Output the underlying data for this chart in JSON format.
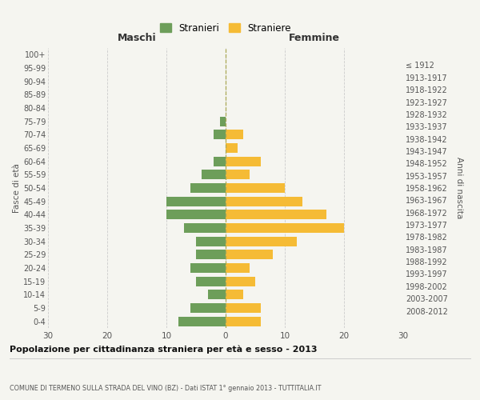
{
  "age_groups": [
    "0-4",
    "5-9",
    "10-14",
    "15-19",
    "20-24",
    "25-29",
    "30-34",
    "35-39",
    "40-44",
    "45-49",
    "50-54",
    "55-59",
    "60-64",
    "65-69",
    "70-74",
    "75-79",
    "80-84",
    "85-89",
    "90-94",
    "95-99",
    "100+"
  ],
  "birth_years": [
    "2008-2012",
    "2003-2007",
    "1998-2002",
    "1993-1997",
    "1988-1992",
    "1983-1987",
    "1978-1982",
    "1973-1977",
    "1968-1972",
    "1963-1967",
    "1958-1962",
    "1953-1957",
    "1948-1952",
    "1943-1947",
    "1938-1942",
    "1933-1937",
    "1928-1932",
    "1923-1927",
    "1918-1922",
    "1913-1917",
    "≤ 1912"
  ],
  "males": [
    8,
    6,
    3,
    5,
    6,
    5,
    5,
    7,
    10,
    10,
    6,
    4,
    2,
    0,
    2,
    1,
    0,
    0,
    0,
    0,
    0
  ],
  "females": [
    6,
    6,
    3,
    5,
    4,
    8,
    12,
    20,
    17,
    13,
    10,
    4,
    6,
    2,
    3,
    0,
    0,
    0,
    0,
    0,
    0
  ],
  "male_color": "#6d9e5a",
  "female_color": "#f5bb35",
  "title": "Popolazione per cittadinanza straniera per età e sesso - 2013",
  "subtitle": "COMUNE DI TERMENO SULLA STRADA DEL VINO (BZ) - Dati ISTAT 1° gennaio 2013 - TUTTITALIA.IT",
  "ylabel_left": "Fasce di età",
  "ylabel_right": "Anni di nascita",
  "xlabel_left": "Maschi",
  "xlabel_right": "Femmine",
  "legend_male": "Stranieri",
  "legend_female": "Straniere",
  "xlim": 30,
  "background_color": "#f5f5f0",
  "grid_color": "#cccccc",
  "bar_height": 0.72
}
